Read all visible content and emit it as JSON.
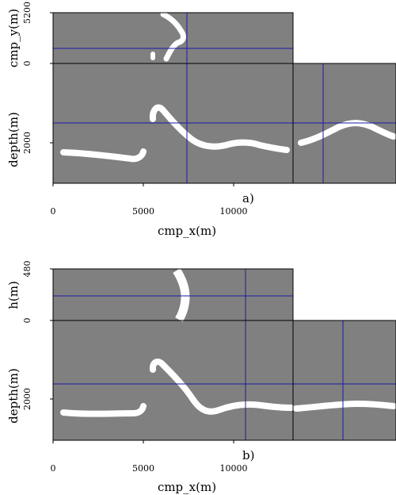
{
  "figure": {
    "panels": [
      {
        "tag": "a)",
        "top_ylabel": "cmp_y(m)",
        "top_ticks": [
          "5200",
          "0"
        ],
        "depth_label": "depth(m)",
        "depth_tick": "2000",
        "xlabel": "cmp_x(m)",
        "x_ticks": [
          "0",
          "5000",
          "10000"
        ]
      },
      {
        "tag": "b)",
        "top_ylabel": "h(m)",
        "top_ticks": [
          "480",
          "0"
        ],
        "depth_label": "depth(m)",
        "depth_tick": "2000",
        "xlabel": "cmp_x(m)",
        "x_ticks": [
          "0",
          "5000",
          "10000"
        ]
      }
    ],
    "colors": {
      "background": "#808080",
      "reflector": "#ffffff",
      "crosshair": "#1a1aa6",
      "frame": "#000000"
    }
  }
}
